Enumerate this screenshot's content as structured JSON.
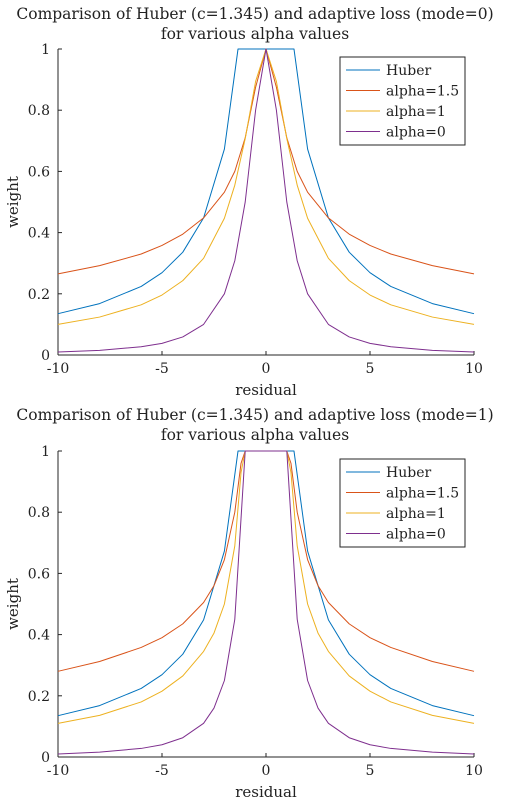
{
  "chart_data": [
    {
      "type": "line",
      "title_line1": "Comparison of Huber (c=1.345) and adaptive loss (mode=0)",
      "title_line2": "for various alpha values",
      "xlabel": "residual",
      "ylabel": "weight",
      "xlim": [
        -10,
        10
      ],
      "ylim": [
        0,
        1
      ],
      "x_ticks": [
        "-10",
        "-5",
        "0",
        "5",
        "10"
      ],
      "y_ticks": [
        "0",
        "0.2",
        "0.4",
        "0.6",
        "0.8",
        "1"
      ],
      "grid": false,
      "legend_position": "top-right",
      "series": [
        {
          "name": "Huber",
          "color": "#0072BD",
          "x": [
            -10,
            -8,
            -6,
            -5,
            -4,
            -3,
            -2,
            -1.345,
            -1.345,
            1.345,
            1.345,
            2,
            3,
            4,
            5,
            6,
            8,
            10
          ],
          "y": [
            0.135,
            0.168,
            0.224,
            0.269,
            0.336,
            0.448,
            0.673,
            1,
            1,
            1,
            1,
            0.673,
            0.448,
            0.336,
            0.269,
            0.224,
            0.168,
            0.135
          ]
        },
        {
          "name": "alpha=1.5",
          "color": "#D95319",
          "x": [
            -10,
            -8,
            -6,
            -5,
            -4,
            -3,
            -2,
            -1.5,
            -1,
            -0.5,
            0,
            0.5,
            1,
            1.5,
            2,
            3,
            4,
            5,
            6,
            8,
            10
          ],
          "y": [
            0.265,
            0.292,
            0.33,
            0.358,
            0.395,
            0.448,
            0.532,
            0.6,
            0.71,
            0.875,
            1,
            0.875,
            0.71,
            0.6,
            0.532,
            0.448,
            0.395,
            0.358,
            0.33,
            0.292,
            0.265
          ]
        },
        {
          "name": "alpha=1",
          "color": "#EDB120",
          "x": [
            -10,
            -8,
            -6,
            -5,
            -4,
            -3,
            -2,
            -1.5,
            -1,
            -0.5,
            0,
            0.5,
            1,
            1.5,
            2,
            3,
            4,
            5,
            6,
            8,
            10
          ],
          "y": [
            0.1,
            0.124,
            0.164,
            0.196,
            0.243,
            0.316,
            0.447,
            0.555,
            0.707,
            0.894,
            1,
            0.894,
            0.707,
            0.555,
            0.447,
            0.316,
            0.243,
            0.196,
            0.164,
            0.124,
            0.1
          ]
        },
        {
          "name": "alpha=0",
          "color": "#7E2F8E",
          "x": [
            -10,
            -8,
            -6,
            -5,
            -4,
            -3,
            -2,
            -1.5,
            -1,
            -0.5,
            0,
            0.5,
            1,
            1.5,
            2,
            3,
            4,
            5,
            6,
            8,
            10
          ],
          "y": [
            0.01,
            0.015,
            0.027,
            0.038,
            0.059,
            0.1,
            0.2,
            0.308,
            0.5,
            0.8,
            1,
            0.8,
            0.5,
            0.308,
            0.2,
            0.1,
            0.059,
            0.038,
            0.027,
            0.015,
            0.01
          ]
        }
      ]
    },
    {
      "type": "line",
      "title_line1": "Comparison of Huber (c=1.345) and adaptive loss (mode=1)",
      "title_line2": "for various alpha values",
      "xlabel": "residual",
      "ylabel": "weight",
      "xlim": [
        -10,
        10
      ],
      "ylim": [
        0,
        1
      ],
      "x_ticks": [
        "-10",
        "-5",
        "0",
        "5",
        "10"
      ],
      "y_ticks": [
        "0",
        "0.2",
        "0.4",
        "0.6",
        "0.8",
        "1"
      ],
      "grid": false,
      "legend_position": "top-right",
      "series": [
        {
          "name": "Huber",
          "color": "#0072BD",
          "x": [
            -10,
            -8,
            -6,
            -5,
            -4,
            -3,
            -2,
            -1.345,
            -1.345,
            1.345,
            1.345,
            2,
            3,
            4,
            5,
            6,
            8,
            10
          ],
          "y": [
            0.135,
            0.168,
            0.224,
            0.269,
            0.336,
            0.448,
            0.673,
            1,
            1,
            1,
            1,
            0.673,
            0.448,
            0.336,
            0.269,
            0.224,
            0.168,
            0.135
          ]
        },
        {
          "name": "alpha=1.5",
          "color": "#D95319",
          "x": [
            -10,
            -8,
            -6,
            -5,
            -4,
            -3,
            -2.5,
            -2,
            -1.5,
            -1.2,
            -1,
            -0.5,
            0,
            0.5,
            1,
            1.2,
            1.5,
            2,
            2.5,
            3,
            4,
            5,
            6,
            8,
            10
          ],
          "y": [
            0.28,
            0.312,
            0.358,
            0.39,
            0.435,
            0.505,
            0.56,
            0.645,
            0.8,
            0.96,
            1,
            1,
            1,
            1,
            1,
            0.96,
            0.8,
            0.645,
            0.56,
            0.505,
            0.435,
            0.39,
            0.358,
            0.312,
            0.28
          ]
        },
        {
          "name": "alpha=1",
          "color": "#EDB120",
          "x": [
            -10,
            -8,
            -6,
            -5,
            -4,
            -3,
            -2.5,
            -2,
            -1.5,
            -1.2,
            -1,
            -0.5,
            0,
            0.5,
            1,
            1.2,
            1.5,
            2,
            2.5,
            3,
            4,
            5,
            6,
            8,
            10
          ],
          "y": [
            0.11,
            0.136,
            0.18,
            0.215,
            0.265,
            0.345,
            0.405,
            0.5,
            0.69,
            0.93,
            1,
            1,
            1,
            1,
            1,
            0.93,
            0.69,
            0.5,
            0.405,
            0.345,
            0.265,
            0.215,
            0.18,
            0.136,
            0.11
          ]
        },
        {
          "name": "alpha=0",
          "color": "#7E2F8E",
          "x": [
            -10,
            -8,
            -6,
            -5,
            -4,
            -3,
            -2.5,
            -2,
            -1.5,
            -1.2,
            -1,
            -0.5,
            0,
            0.5,
            1,
            1.2,
            1.5,
            2,
            2.5,
            3,
            4,
            5,
            6,
            8,
            10
          ],
          "y": [
            0.01,
            0.016,
            0.028,
            0.04,
            0.063,
            0.11,
            0.16,
            0.25,
            0.45,
            0.78,
            1,
            1,
            1,
            1,
            1,
            0.78,
            0.45,
            0.25,
            0.16,
            0.11,
            0.063,
            0.04,
            0.028,
            0.016,
            0.01
          ]
        }
      ]
    }
  ]
}
